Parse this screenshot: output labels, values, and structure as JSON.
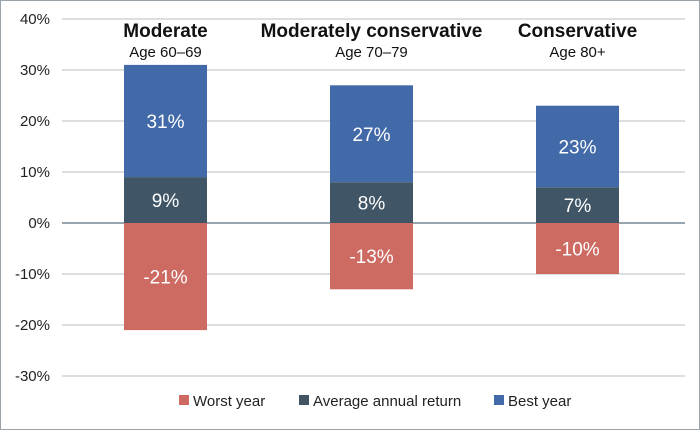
{
  "chart_data": {
    "type": "bar",
    "stacked": true,
    "categories": [
      "Moderate",
      "Moderately conservative",
      "Conservative"
    ],
    "subtitles": [
      "Age 60–69",
      "Age 70–79",
      "Age 80+"
    ],
    "series": [
      {
        "name": "Worst year",
        "key": "worst",
        "color": "#cd6b63",
        "values": [
          -21,
          -13,
          -10
        ],
        "labels": [
          "-21%",
          "-13%",
          "-10%"
        ]
      },
      {
        "name": "Average annual return",
        "key": "avg",
        "color": "#405565",
        "values": [
          9,
          8,
          7
        ],
        "labels": [
          "9%",
          "8%",
          "7%"
        ]
      },
      {
        "name": "Best year",
        "key": "best",
        "color": "#4269a8",
        "values": [
          31,
          27,
          23
        ],
        "labels": [
          "31%",
          "27%",
          "23%"
        ]
      }
    ],
    "stack_mode": "best_includes_average",
    "ylim": [
      -30,
      40
    ],
    "yticks": [
      -30,
      -20,
      -10,
      0,
      10,
      20,
      30,
      40
    ],
    "ytick_labels": [
      "-30%",
      "-20%",
      "-10%",
      "0%",
      "10%",
      "20%",
      "30%",
      "40%"
    ],
    "legend_position": "bottom",
    "grid": true
  }
}
